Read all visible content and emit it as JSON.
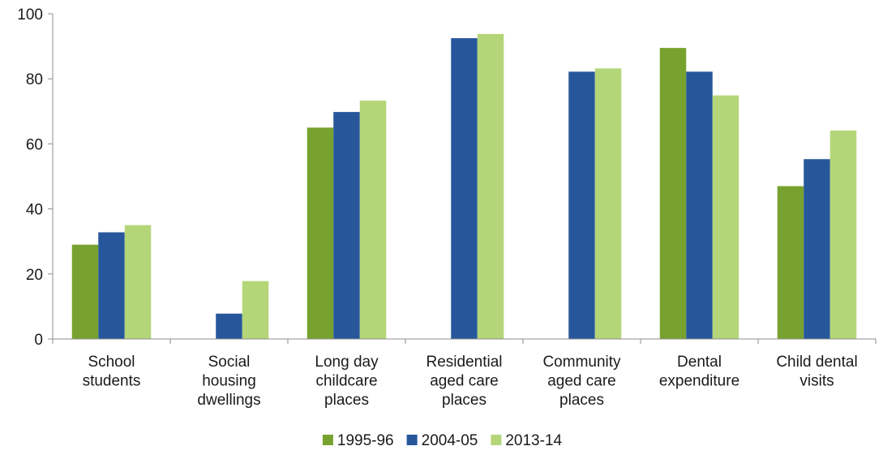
{
  "chart_data": {
    "type": "bar",
    "title": "",
    "xlabel": "",
    "ylabel": "",
    "ylim": [
      0,
      100
    ],
    "yticks": [
      0,
      20,
      40,
      60,
      80,
      100
    ],
    "grid": false,
    "legend_position": "bottom",
    "categories": [
      [
        "School",
        "students"
      ],
      [
        "Social",
        "housing",
        "dwellings"
      ],
      [
        "Long day",
        "childcare",
        "places"
      ],
      [
        "Residential",
        "aged care",
        "places"
      ],
      [
        "Community",
        "aged care",
        "places"
      ],
      [
        "Dental",
        "expenditure"
      ],
      [
        "Child dental",
        "visits"
      ]
    ],
    "series": [
      {
        "name": "1995-96",
        "color": "#77a22f",
        "values": [
          29,
          null,
          65,
          null,
          null,
          89.5,
          47
        ]
      },
      {
        "name": "2004-05",
        "color": "#27579a",
        "values": [
          32.8,
          7.8,
          69.8,
          92.5,
          82.2,
          82.2,
          55.3
        ]
      },
      {
        "name": "2013-14",
        "color": "#b4d678",
        "values": [
          35,
          17.8,
          73.3,
          93.8,
          83.2,
          74.9,
          64.1
        ]
      }
    ]
  }
}
